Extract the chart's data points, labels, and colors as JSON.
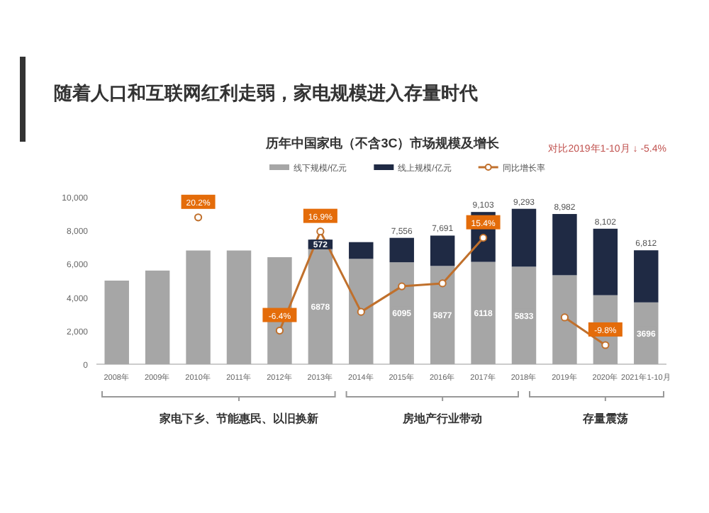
{
  "chart_data": {
    "type": "bar",
    "stacked": true,
    "title": "随着人口和互联网红利走弱，家电规模进入存量时代",
    "subtitle": "历年中国家电（不含3C）市场规模及增长",
    "annotations": [
      "对比2019年1-10月 ↓ -5.4%",
      {
        "text": "家电下乡、节能惠民、以旧换新",
        "x": "2011年"
      },
      {
        "text": "房地产行业带动",
        "x": "2016年"
      },
      {
        "text": "存量震荡",
        "x": "2020年"
      }
    ],
    "categories": [
      "2008年",
      "2009年",
      "2010年",
      "2011年",
      "2012年",
      "2013年",
      "2014年",
      "2015年",
      "2016年",
      "2017年",
      "2018年",
      "2019年",
      "2020年",
      "2021年1-10月"
    ],
    "series": [
      {
        "name": "线下规模/亿元",
        "color": "#a6a6a6",
        "values": [
          5000,
          5600,
          6800,
          6800,
          6400,
          6878,
          6300,
          6095,
          5877,
          6118,
          5833,
          5321,
          4125,
          3696
        ],
        "value_labels": [
          null,
          null,
          null,
          null,
          null,
          "6878",
          null,
          "6095",
          "5877",
          "6118",
          "5833",
          null,
          null,
          "3696"
        ]
      },
      {
        "name": "线上规模/亿元",
        "color": "#1f2a44",
        "values": [
          null,
          null,
          null,
          null,
          null,
          572,
          1000,
          1461,
          1814,
          2985,
          3460,
          3661,
          3977,
          3116
        ],
        "value_labels": [
          null,
          null,
          null,
          null,
          null,
          "572",
          null,
          null,
          null,
          null,
          null,
          null,
          null,
          null
        ]
      },
      {
        "name": "同比增长率",
        "type": "line",
        "axis": "y2",
        "color": "#c0702c",
        "values": [
          null,
          null,
          20.2,
          null,
          -6.4,
          16.9,
          -2,
          4,
          4.7,
          15.4,
          null,
          -3.3,
          -9.8,
          null
        ],
        "value_labels": [
          null,
          null,
          "20.2%",
          null,
          "-6.4%",
          "16.9%",
          null,
          null,
          null,
          "15.4%",
          null,
          null,
          "-9.8%",
          null
        ]
      }
    ],
    "totals": [
      null,
      null,
      null,
      null,
      null,
      null,
      null,
      "7,556",
      "7,691",
      "9,103",
      "9,293",
      "8,982",
      "8,102",
      "6,812"
    ],
    "ylim": [
      0,
      10000
    ],
    "yticks": [
      0,
      {
        "value": 2000,
        "label": "2,000"
      },
      {
        "value": 4000,
        "label": "4,000"
      },
      {
        "value": 6000,
        "label": "6,000"
      },
      {
        "value": 8000,
        "label": "8,000"
      },
      {
        "value": 10000,
        "label": "10,000"
      }
    ],
    "y2lim": [
      -14.3,
      25
    ],
    "legend": "top",
    "marker": "circle",
    "grid": false
  }
}
